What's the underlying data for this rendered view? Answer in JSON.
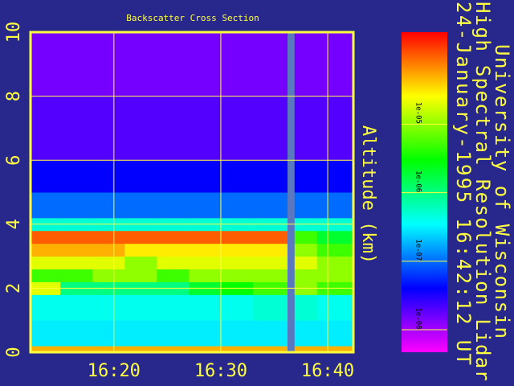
{
  "chart_data": {
    "type": "heatmap",
    "title": "Backscatter Cross Section",
    "ylabel": "Altitude (km)",
    "annotation_lines": [
      "University of Wisconsin",
      "High Spectral Resolution Lidar",
      "24-January-1995 16:42:12 UT"
    ],
    "xbins": [
      972.2,
      975,
      978,
      981,
      984,
      987,
      990,
      993,
      996.2,
      996.9,
      999,
      1002.4
    ],
    "ybins": [
      0,
      0.2,
      1,
      1.8,
      2.2,
      2.6,
      3,
      3.4,
      3.8,
      4.2,
      5,
      6,
      8,
      10
    ],
    "values": [
      [
        5e-05,
        5e-05,
        5e-05,
        5e-05,
        5e-05,
        5e-05,
        5e-05,
        5e-05,
        null,
        5e-05,
        5e-05
      ],
      [
        3e-07,
        3e-07,
        3e-07,
        3e-07,
        3e-07,
        3e-07,
        3e-07,
        3e-07,
        null,
        3e-07,
        3e-07
      ],
      [
        4e-07,
        4e-07,
        4e-07,
        4e-07,
        4e-07,
        4e-07,
        4e-07,
        5e-07,
        null,
        5e-07,
        4e-07
      ],
      [
        2e-05,
        1e-06,
        1e-06,
        1e-06,
        1e-06,
        2e-06,
        3e-06,
        5e-06,
        null,
        1e-05,
        5e-06
      ],
      [
        5e-06,
        5e-06,
        1e-05,
        1e-05,
        5e-06,
        1e-05,
        1e-05,
        1e-05,
        null,
        1e-05,
        1e-05
      ],
      [
        2e-05,
        2e-05,
        2e-05,
        1e-05,
        2e-05,
        2e-05,
        2e-05,
        2e-05,
        null,
        2e-05,
        1e-05
      ],
      [
        5e-05,
        5e-05,
        5e-05,
        3e-05,
        3e-05,
        3e-05,
        3e-05,
        3e-05,
        null,
        1e-05,
        5e-06
      ],
      [
        0.0001,
        0.0001,
        0.0001,
        0.0001,
        0.0001,
        0.0001,
        0.0001,
        0.0001,
        null,
        5e-06,
        2e-06
      ],
      [
        5e-07,
        5e-07,
        5e-07,
        5e-07,
        5e-07,
        5e-07,
        5e-07,
        5e-07,
        null,
        5e-07,
        5e-07
      ],
      [
        1e-07,
        1e-07,
        1e-07,
        1e-07,
        1e-07,
        1e-07,
        1e-07,
        1e-07,
        null,
        1e-07,
        1e-07
      ],
      [
        4e-08,
        4e-08,
        4e-08,
        4e-08,
        4e-08,
        4e-08,
        4e-08,
        4e-08,
        null,
        4e-08,
        4e-08
      ],
      [
        2e-08,
        2e-08,
        2e-08,
        2e-08,
        2e-08,
        2e-08,
        2e-08,
        2e-08,
        null,
        2e-08,
        2e-08
      ],
      [
        1.5e-08,
        1.5e-08,
        1.5e-08,
        1.5e-08,
        1.5e-08,
        1.5e-08,
        1.5e-08,
        1.5e-08,
        null,
        1.5e-08,
        1.5e-08
      ]
    ],
    "xlim": [
      972.2,
      1002.4
    ],
    "xticks": [
      {
        "value": 980,
        "label": "16:20"
      },
      {
        "value": 990,
        "label": "16:30"
      },
      {
        "value": 1000,
        "label": "16:40"
      }
    ],
    "ylim": [
      0,
      10
    ],
    "yticks": [
      0,
      2,
      4,
      6,
      8,
      10
    ],
    "grid": true,
    "clim": [
      4.7e-09,
      0.00022
    ],
    "colorbar_ticks": [
      {
        "value": 1e-05,
        "label": "1e-05"
      },
      {
        "value": 1e-06,
        "label": "1e-06"
      },
      {
        "value": 1e-07,
        "label": "1e-07"
      },
      {
        "value": 1e-08,
        "label": "1e-08"
      }
    ],
    "log_color": true,
    "frame_color": "#ffff40",
    "missing_color": "#5a78c0"
  }
}
